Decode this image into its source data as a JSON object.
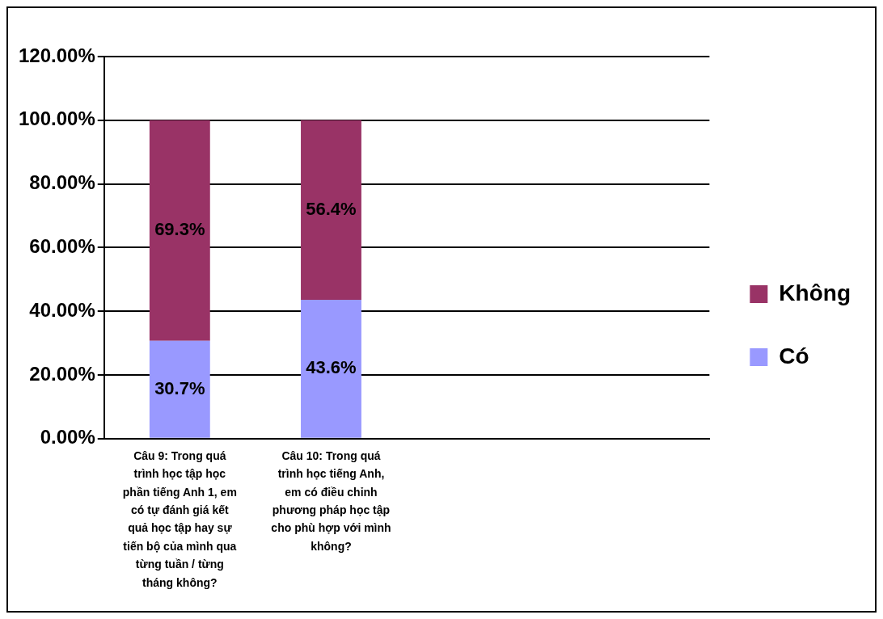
{
  "chart_data": {
    "type": "bar",
    "stacked": true,
    "categories": [
      "Câu 9: Trong quá trình học tập học phần tiếng Anh 1, em có tự đánh giá kết quả học tập hay sự tiến bộ của mình qua từng tuần / từng tháng không?",
      "Câu 10: Trong quá trình học tiếng Anh, em có điều chỉnh phương pháp học tập cho phù hợp với mình không?",
      null,
      null
    ],
    "series": [
      {
        "name": "Có",
        "color": "#9999ff",
        "values": [
          30.7,
          43.6,
          null,
          null
        ],
        "value_labels": [
          "30.7%",
          "43.6%",
          null,
          null
        ]
      },
      {
        "name": "Không",
        "color": "#993366",
        "values": [
          69.3,
          56.4,
          null,
          null
        ],
        "value_labels": [
          "69.3%",
          "56.4%",
          null,
          null
        ]
      }
    ],
    "ylim": [
      0,
      120
    ],
    "yticks": [
      {
        "value": 0,
        "label": "0.00%"
      },
      {
        "value": 20,
        "label": "20.00%"
      },
      {
        "value": 40,
        "label": "40.00%"
      },
      {
        "value": 60,
        "label": "60.00%"
      },
      {
        "value": 80,
        "label": "80.00%"
      },
      {
        "value": 100,
        "label": "100.00%"
      },
      {
        "value": 120,
        "label": "120.00%"
      }
    ],
    "grid": "y",
    "legend": "right"
  }
}
